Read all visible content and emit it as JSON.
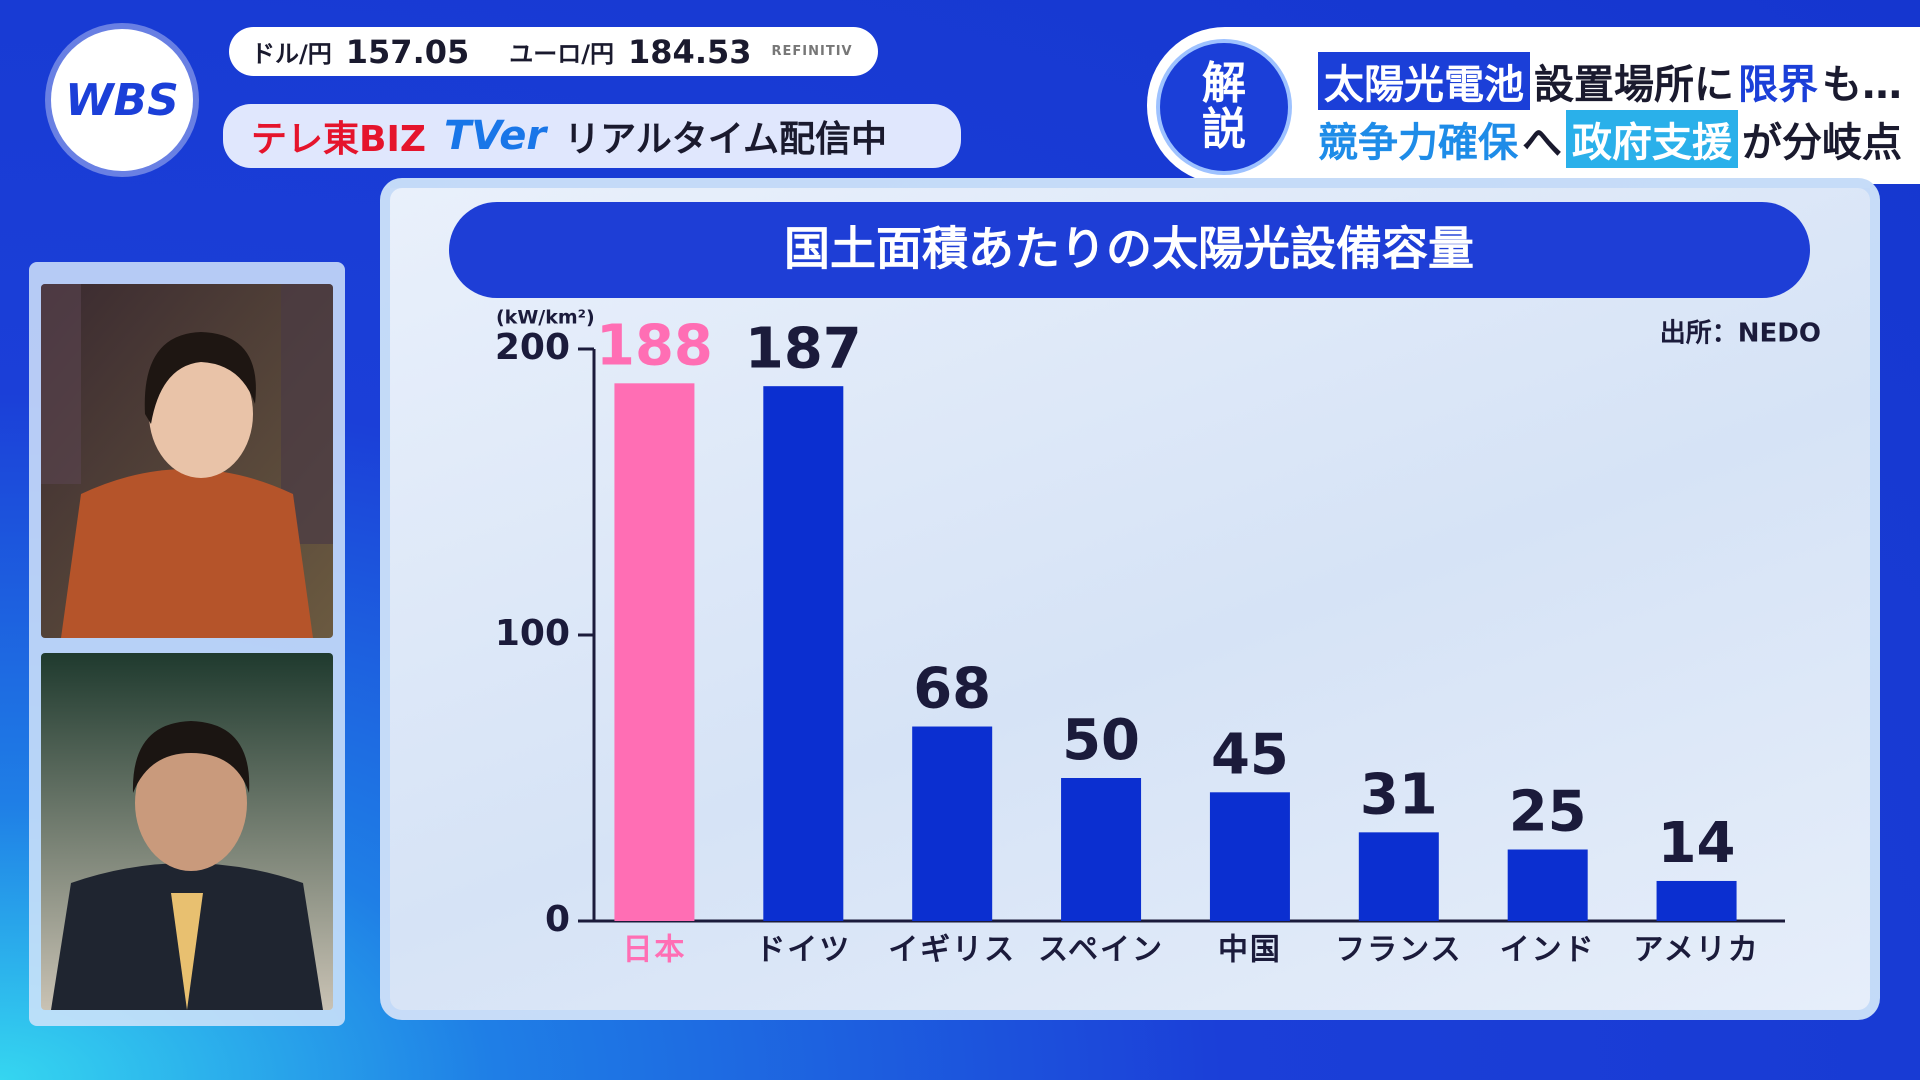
{
  "ticker": {
    "items": [
      {
        "label": "ドル/円",
        "value": "157.05"
      },
      {
        "label": "ユーロ/円",
        "value": "184.53"
      }
    ],
    "source": "REFINITIV"
  },
  "logo": "WBS",
  "live": {
    "channel": "テレ東BIZ",
    "service": "TVer",
    "text": "リアルタイム配信中"
  },
  "headline": {
    "tag": [
      "解",
      "説"
    ],
    "line1": [
      "太陽光電池",
      "設置場所に",
      "限界",
      "も…"
    ],
    "line2": [
      "競争力確保",
      "へ",
      "政府支援",
      "が分岐点"
    ]
  },
  "chart_data": {
    "type": "bar",
    "title": "国土面積あたりの太陽光設備容量",
    "y_label": "(kW/km²)",
    "source": "出所：NEDO",
    "categories": [
      "日本",
      "ドイツ",
      "イギリス",
      "スペイン",
      "中国",
      "フランス",
      "インド",
      "アメリカ"
    ],
    "values": [
      188,
      187,
      68,
      50,
      45,
      31,
      25,
      14
    ],
    "colors": [
      "#ff6eb4",
      "#0b2fd0",
      "#0b2fd0",
      "#0b2fd0",
      "#0b2fd0",
      "#0b2fd0",
      "#0b2fd0",
      "#0b2fd0"
    ],
    "label_color": "#1b1b3b",
    "ylim": [
      0,
      200
    ],
    "yticks": [
      0,
      100,
      200
    ],
    "grid": false
  }
}
